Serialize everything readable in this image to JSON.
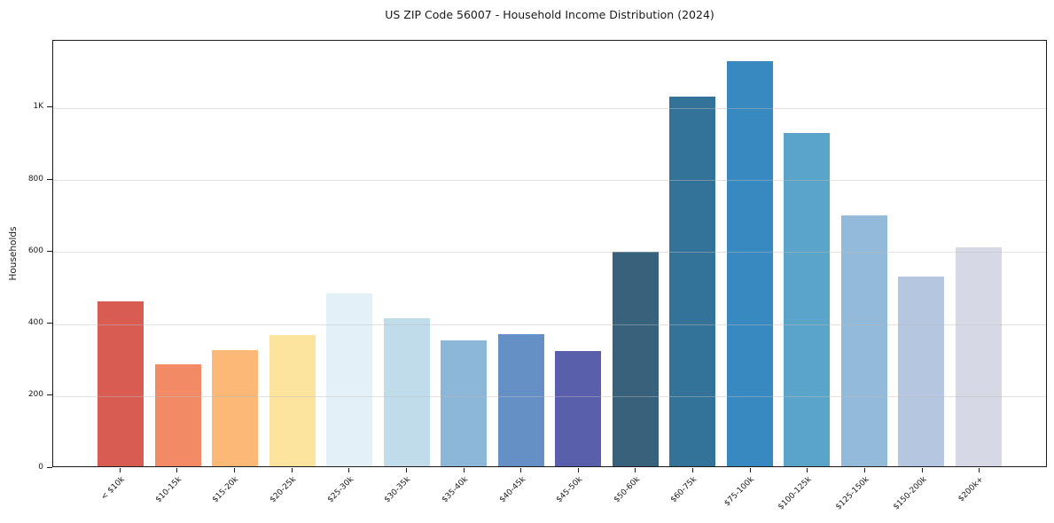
{
  "chart_data": {
    "type": "bar",
    "title": "US ZIP Code 56007 - Household Income Distribution (2024)",
    "xlabel": "",
    "ylabel": "Households",
    "categories": [
      "< $10k",
      "$10-15k",
      "$15-20k",
      "$20-25k",
      "$25-30k",
      "$30-35k",
      "$35-40k",
      "$40-45k",
      "$45-50k",
      "$50-60k",
      "$60-75k",
      "$75-100k",
      "$100-125k",
      "$125-150k",
      "$150-200k",
      "$200k+"
    ],
    "values": [
      459,
      284,
      323,
      365,
      483,
      414,
      350,
      368,
      321,
      598,
      1031,
      1130,
      931,
      699,
      530,
      611
    ],
    "bar_colors": [
      "#d85c51",
      "#f28a66",
      "#fbb876",
      "#fce49e",
      "#e4f0f7",
      "#c0dcea",
      "#8cb7d8",
      "#6590c6",
      "#5a5fab",
      "#38627b",
      "#337399",
      "#3789c0",
      "#5ba4c9",
      "#93bad8",
      "#b5c7e0",
      "#d7d8e6"
    ],
    "ylim": [
      0,
      1187
    ],
    "yticks": [
      {
        "value": 0,
        "label": "0"
      },
      {
        "value": 200,
        "label": "200"
      },
      {
        "value": 400,
        "label": "400"
      },
      {
        "value": 600,
        "label": "600"
      },
      {
        "value": 800,
        "label": "800"
      },
      {
        "value": 1000,
        "label": "1K"
      }
    ],
    "grid": "horizontal",
    "legend": "none",
    "bar_width_fraction": 0.8
  }
}
